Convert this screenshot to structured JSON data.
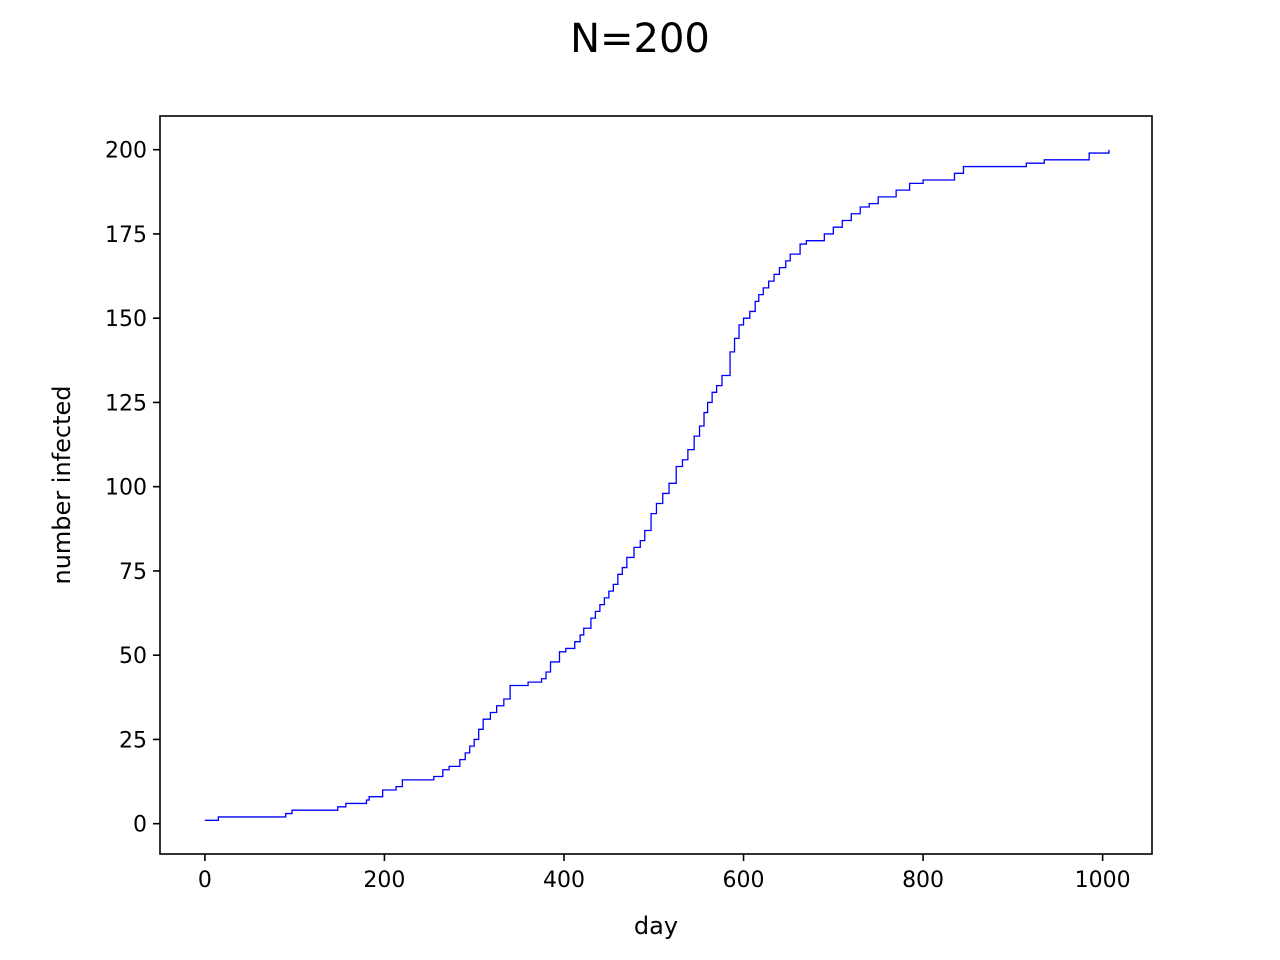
{
  "chart_data": {
    "type": "line",
    "title": "N=200",
    "xlabel": "day",
    "ylabel": "number infected",
    "xlim": [
      -50,
      1055
    ],
    "ylim": [
      -9,
      210
    ],
    "xticks": [
      0,
      200,
      400,
      600,
      800,
      1000
    ],
    "yticks": [
      0,
      25,
      50,
      75,
      100,
      125,
      150,
      175,
      200
    ],
    "grid": false,
    "line_color": "#0000ff",
    "series": [
      {
        "step": true,
        "x": [
          0,
          15,
          90,
          97,
          148,
          157,
          180,
          183,
          198,
          213,
          220,
          255,
          265,
          272,
          284,
          290,
          295,
          300,
          305,
          310,
          318,
          325,
          333,
          340,
          360,
          375,
          380,
          385,
          395,
          402,
          412,
          418,
          422,
          430,
          435,
          440,
          445,
          450,
          455,
          460,
          465,
          470,
          478,
          485,
          490,
          497,
          503,
          510,
          517,
          525,
          532,
          538,
          545,
          551,
          556,
          560,
          565,
          570,
          576,
          585,
          590,
          595,
          600,
          607,
          613,
          617,
          622,
          628,
          634,
          640,
          647,
          652,
          663,
          670,
          690,
          700,
          710,
          720,
          730,
          740,
          750,
          770,
          785,
          800,
          835,
          845,
          915,
          935,
          985,
          1007
        ],
        "y": [
          1,
          2,
          3,
          4,
          5,
          6,
          7,
          8,
          10,
          11,
          13,
          14,
          16,
          17,
          19,
          21,
          23,
          25,
          28,
          31,
          33,
          35,
          37,
          41,
          42,
          43,
          45,
          48,
          51,
          52,
          54,
          56,
          58,
          61,
          63,
          65,
          67,
          69,
          71,
          74,
          76,
          79,
          82,
          84,
          87,
          92,
          95,
          98,
          101,
          106,
          108,
          111,
          115,
          118,
          122,
          125,
          128,
          130,
          133,
          140,
          144,
          148,
          150,
          152,
          155,
          157,
          159,
          161,
          163,
          165,
          167,
          169,
          172,
          173,
          175,
          177,
          179,
          181,
          183,
          184,
          186,
          188,
          190,
          191,
          193,
          195,
          196,
          197,
          199,
          200
        ]
      }
    ]
  }
}
